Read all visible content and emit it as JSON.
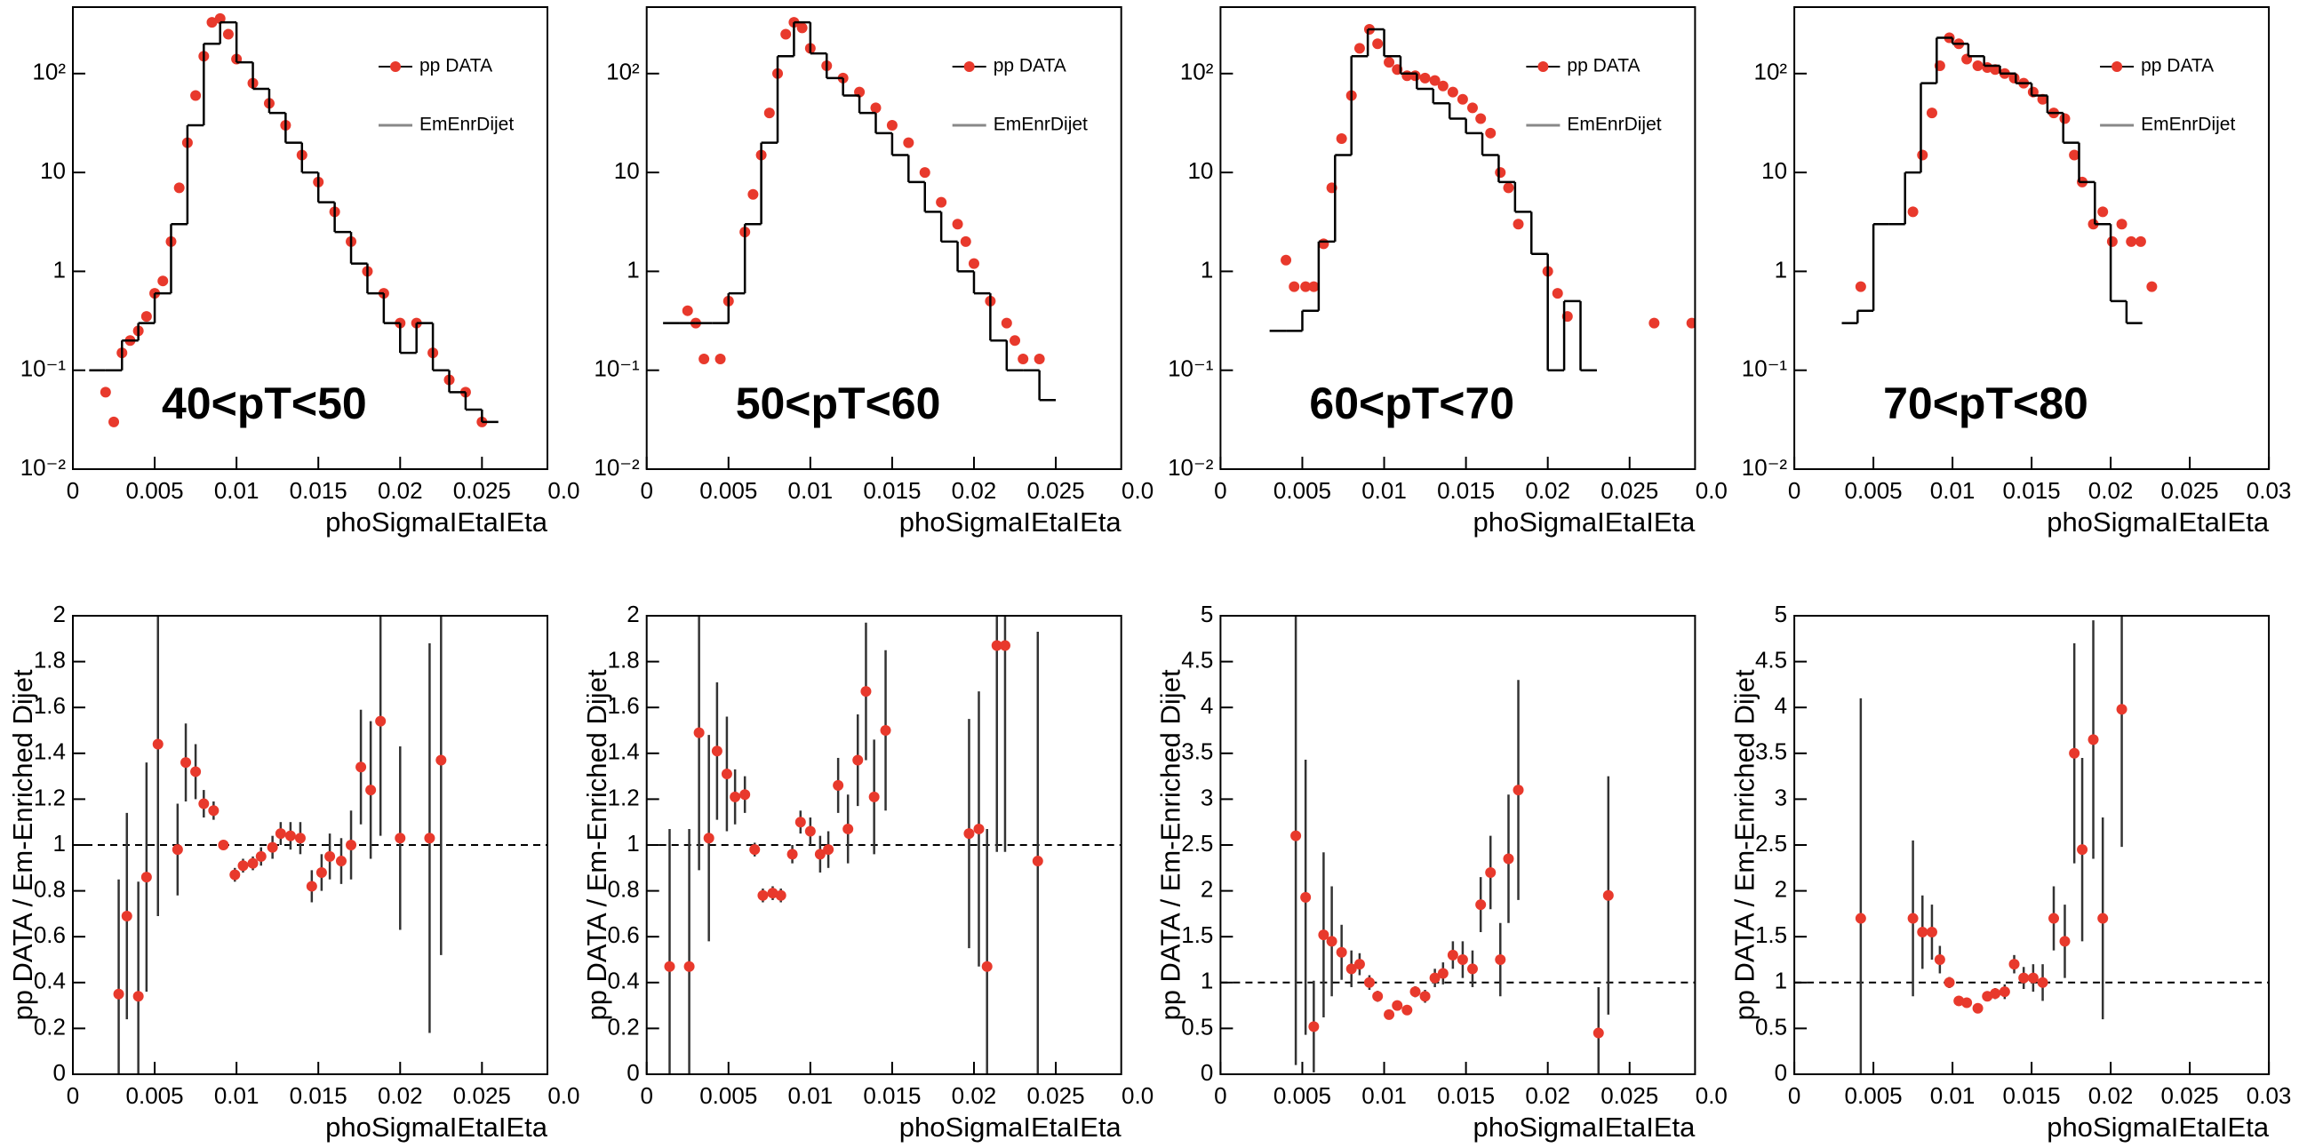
{
  "chart_data": [
    {
      "type": "step",
      "annotation": "40<pT<50",
      "xlabel": "phoSigmaIEtaIEta",
      "legend": "upper right",
      "y_log": true,
      "xlim": [
        0,
        0.029
      ],
      "xticks": [
        0,
        0.005,
        0.01,
        0.015,
        0.02,
        0.025,
        {
          "value": 0.03,
          "label": "0.0"
        }
      ],
      "ylim": [
        0.01,
        470
      ],
      "yticks": [
        {
          "value": 0.01,
          "label": "10⁻²"
        },
        {
          "value": 0.1,
          "label": "10⁻¹"
        },
        1,
        10,
        {
          "value": 100,
          "label": "10²"
        }
      ],
      "series": [
        {
          "name": "pp DATA",
          "color": "#e8392c",
          "x": [
            0.002,
            0.0025,
            0.003,
            0.0035,
            0.004,
            0.0045,
            0.005,
            0.0055,
            0.006,
            0.0065,
            0.007,
            0.0075,
            0.008,
            0.0085,
            0.009,
            0.0095,
            0.01,
            0.011,
            0.012,
            0.013,
            0.014,
            0.015,
            0.016,
            0.017,
            0.018,
            0.019,
            0.02,
            0.021,
            0.022,
            0.023,
            0.024,
            0.025
          ],
          "values": [
            0.06,
            0.03,
            0.15,
            0.2,
            0.25,
            0.35,
            0.6,
            0.8,
            2,
            7,
            20,
            60,
            150,
            330,
            360,
            250,
            140,
            80,
            50,
            30,
            15,
            8,
            4,
            2,
            1,
            0.6,
            0.3,
            0.3,
            0.15,
            0.08,
            0.06,
            0.03
          ]
        },
        {
          "name": "EmEnrDijet",
          "color": "#000000",
          "bins": [
            0.001,
            0.002,
            0.003,
            0.004,
            0.005,
            0.006,
            0.007,
            0.008,
            0.009,
            0.01,
            0.011,
            0.012,
            0.013,
            0.014,
            0.015,
            0.016,
            0.017,
            0.018,
            0.019,
            0.02,
            0.021,
            0.022,
            0.023,
            0.024,
            0.025,
            0.026
          ],
          "values": [
            0.1,
            0.1,
            0.2,
            0.3,
            0.6,
            3,
            30,
            200,
            330,
            130,
            70,
            40,
            20,
            10,
            5,
            2.5,
            1.2,
            0.6,
            0.3,
            0.15,
            0.3,
            0.1,
            0.06,
            0.04,
            0.03
          ]
        }
      ]
    },
    {
      "type": "step",
      "annotation": "50<pT<60",
      "xlabel": "phoSigmaIEtaIEta",
      "legend": "upper right",
      "y_log": true,
      "xlim": [
        0,
        0.029
      ],
      "xticks": [
        0,
        0.005,
        0.01,
        0.015,
        0.02,
        0.025,
        {
          "value": 0.03,
          "label": "0.0"
        }
      ],
      "ylim": [
        0.01,
        470
      ],
      "yticks": [
        {
          "value": 0.01,
          "label": "10⁻²"
        },
        {
          "value": 0.1,
          "label": "10⁻¹"
        },
        1,
        10,
        {
          "value": 100,
          "label": "10²"
        }
      ],
      "series": [
        {
          "name": "pp DATA",
          "color": "#e8392c",
          "x": [
            0.0025,
            0.003,
            0.0035,
            0.0045,
            0.005,
            0.006,
            0.0065,
            0.007,
            0.0075,
            0.008,
            0.0085,
            0.009,
            0.0095,
            0.01,
            0.011,
            0.012,
            0.013,
            0.014,
            0.015,
            0.016,
            0.017,
            0.018,
            0.019,
            0.0195,
            0.02,
            0.021,
            0.022,
            0.0225,
            0.023,
            0.024
          ],
          "values": [
            0.4,
            0.3,
            0.13,
            0.13,
            0.5,
            2.5,
            6,
            15,
            40,
            100,
            250,
            330,
            290,
            180,
            120,
            90,
            65,
            45,
            30,
            20,
            10,
            5,
            3,
            2,
            1.2,
            0.5,
            0.3,
            0.2,
            0.13,
            0.13
          ]
        },
        {
          "name": "EmEnrDijet",
          "color": "#000000",
          "bins": [
            0.001,
            0.002,
            0.003,
            0.004,
            0.005,
            0.006,
            0.007,
            0.008,
            0.009,
            0.01,
            0.011,
            0.012,
            0.013,
            0.014,
            0.015,
            0.016,
            0.017,
            0.018,
            0.019,
            0.02,
            0.021,
            0.022,
            0.023,
            0.024,
            0.025
          ],
          "values": [
            0.3,
            0.3,
            0.3,
            0.3,
            0.6,
            3,
            20,
            150,
            330,
            160,
            90,
            60,
            40,
            25,
            15,
            8,
            4,
            2,
            1,
            0.6,
            0.2,
            0.1,
            0.1,
            0.05
          ]
        }
      ]
    },
    {
      "type": "step",
      "annotation": "60<pT<70",
      "xlabel": "phoSigmaIEtaIEta",
      "legend": "upper right",
      "y_log": true,
      "xlim": [
        0,
        0.029
      ],
      "xticks": [
        0,
        0.005,
        0.01,
        0.015,
        0.02,
        0.025,
        {
          "value": 0.03,
          "label": "0.0"
        }
      ],
      "ylim": [
        0.01,
        470
      ],
      "yticks": [
        {
          "value": 0.01,
          "label": "10⁻²"
        },
        {
          "value": 0.1,
          "label": "10⁻¹"
        },
        1,
        10,
        {
          "value": 100,
          "label": "10²"
        }
      ],
      "series": [
        {
          "name": "pp DATA",
          "color": "#e8392c",
          "x": [
            0.004,
            0.0045,
            0.0052,
            0.0057,
            0.0063,
            0.0068,
            0.0074,
            0.008,
            0.0085,
            0.0091,
            0.0096,
            0.0103,
            0.0108,
            0.0114,
            0.0119,
            0.0125,
            0.0131,
            0.0136,
            0.0142,
            0.0148,
            0.0154,
            0.0159,
            0.0165,
            0.0171,
            0.0176,
            0.0182,
            0.02,
            0.0206,
            0.0212,
            0.0265,
            0.0288
          ],
          "values": [
            1.3,
            0.7,
            0.7,
            0.7,
            1.9,
            7,
            22,
            60,
            180,
            280,
            200,
            130,
            110,
            95,
            95,
            90,
            85,
            75,
            65,
            55,
            45,
            35,
            25,
            10,
            7,
            3,
            1,
            0.6,
            0.35,
            0.3,
            0.3
          ]
        },
        {
          "name": "EmEnrDijet",
          "color": "#000000",
          "bins": [
            0.003,
            0.004,
            0.005,
            0.006,
            0.007,
            0.008,
            0.009,
            0.01,
            0.011,
            0.012,
            0.013,
            0.014,
            0.015,
            0.016,
            0.017,
            0.018,
            0.019,
            0.02,
            0.021,
            0.022,
            0.023
          ],
          "values": [
            0.25,
            0.25,
            0.4,
            2,
            15,
            150,
            280,
            150,
            100,
            70,
            50,
            35,
            25,
            15,
            8,
            4,
            1.5,
            0.1,
            0.5,
            0.1
          ]
        }
      ]
    },
    {
      "type": "step",
      "annotation": "70<pT<80",
      "xlabel": "phoSigmaIEtaIEta",
      "legend": "upper right",
      "y_log": true,
      "xlim": [
        0,
        0.03
      ],
      "xticks": [
        0,
        0.005,
        0.01,
        0.015,
        0.02,
        0.025,
        0.03
      ],
      "ylim": [
        0.01,
        470
      ],
      "yticks": [
        {
          "value": 0.01,
          "label": "10⁻²"
        },
        {
          "value": 0.1,
          "label": "10⁻¹"
        },
        1,
        10,
        {
          "value": 100,
          "label": "10²"
        }
      ],
      "series": [
        {
          "name": "pp DATA",
          "color": "#e8392c",
          "x": [
            0.0042,
            0.0075,
            0.0081,
            0.0087,
            0.0092,
            0.0098,
            0.0104,
            0.0109,
            0.0116,
            0.0122,
            0.0127,
            0.0133,
            0.0139,
            0.0145,
            0.0151,
            0.0157,
            0.0164,
            0.0171,
            0.0177,
            0.0182,
            0.0189,
            0.0195,
            0.0201,
            0.0207,
            0.0213,
            0.0219,
            0.0226
          ],
          "values": [
            0.7,
            4,
            15,
            40,
            120,
            230,
            200,
            140,
            120,
            115,
            110,
            100,
            90,
            80,
            65,
            55,
            40,
            35,
            15,
            8,
            3,
            4,
            2,
            3,
            2,
            2,
            0.7
          ]
        },
        {
          "name": "EmEnrDijet",
          "color": "#000000",
          "bins": [
            0.003,
            0.004,
            0.005,
            0.006,
            0.007,
            0.008,
            0.009,
            0.01,
            0.011,
            0.012,
            0.013,
            0.014,
            0.015,
            0.016,
            0.017,
            0.018,
            0.019,
            0.02,
            0.021,
            0.022
          ],
          "values": [
            0.3,
            0.4,
            3,
            3,
            10,
            80,
            230,
            200,
            150,
            120,
            100,
            80,
            60,
            40,
            20,
            8,
            3,
            0.5,
            0.3
          ]
        }
      ]
    },
    {
      "type": "scatter",
      "xlabel": "phoSigmaIEtaIEta",
      "ylabel": "pp DATA / Em-Enriched Dijet",
      "color": "#e8392c",
      "reference_line": 1,
      "xlim": [
        0,
        0.029
      ],
      "xticks": [
        0,
        0.005,
        0.01,
        0.015,
        0.02,
        0.025,
        {
          "value": 0.03,
          "label": "0.0"
        }
      ],
      "ylim": [
        0,
        2
      ],
      "yticks": [
        0,
        0.2,
        0.4,
        0.6,
        0.8,
        1,
        1.2,
        1.4,
        1.6,
        1.8,
        2
      ],
      "x": [
        0.0028,
        0.0033,
        0.004,
        0.0045,
        0.0052,
        0.0064,
        0.0069,
        0.0075,
        0.008,
        0.0086,
        0.0092,
        0.0099,
        0.0104,
        0.011,
        0.0115,
        0.0122,
        0.0127,
        0.0133,
        0.0139,
        0.0146,
        0.0152,
        0.0157,
        0.0164,
        0.017,
        0.0176,
        0.0182,
        0.0188,
        0.02,
        0.0218,
        0.0225
      ],
      "values": [
        0.35,
        0.69,
        0.34,
        0.86,
        1.44,
        0.98,
        1.36,
        1.32,
        1.18,
        1.15,
        1.0,
        0.87,
        0.91,
        0.92,
        0.95,
        0.99,
        1.05,
        1.04,
        1.03,
        0.82,
        0.88,
        0.95,
        0.93,
        1.0,
        1.34,
        1.24,
        1.54,
        1.03,
        1.03,
        1.37
      ],
      "errors": [
        0.5,
        0.45,
        0.5,
        0.5,
        0.75,
        0.2,
        0.17,
        0.12,
        0.06,
        0.04,
        0.02,
        0.03,
        0.03,
        0.03,
        0.04,
        0.05,
        0.05,
        0.06,
        0.07,
        0.07,
        0.08,
        0.1,
        0.1,
        0.15,
        0.25,
        0.3,
        0.5,
        0.4,
        0.85,
        0.85
      ]
    },
    {
      "type": "scatter",
      "xlabel": "phoSigmaIEtaIEta",
      "ylabel": "pp DATA / Em-Enriched Dijet",
      "color": "#e8392c",
      "reference_line": 1,
      "xlim": [
        0,
        0.029
      ],
      "xticks": [
        0,
        0.005,
        0.01,
        0.015,
        0.02,
        0.025,
        {
          "value": 0.03,
          "label": "0.0"
        }
      ],
      "ylim": [
        0,
        2
      ],
      "yticks": [
        0,
        0.2,
        0.4,
        0.6,
        0.8,
        1,
        1.2,
        1.4,
        1.6,
        1.8,
        2
      ],
      "x": [
        0.0014,
        0.0026,
        0.0032,
        0.0038,
        0.0043,
        0.0049,
        0.0054,
        0.006,
        0.0066,
        0.0071,
        0.0077,
        0.0082,
        0.0089,
        0.0094,
        0.01,
        0.0106,
        0.0111,
        0.0117,
        0.0123,
        0.0129,
        0.0134,
        0.0139,
        0.0146,
        0.0197,
        0.0203,
        0.0208,
        0.0214,
        0.0219,
        0.0239
      ],
      "values": [
        0.47,
        0.47,
        1.49,
        1.03,
        1.41,
        1.31,
        1.21,
        1.22,
        0.98,
        0.78,
        0.79,
        0.78,
        0.96,
        1.1,
        1.06,
        0.96,
        0.98,
        1.26,
        1.07,
        1.37,
        1.67,
        1.21,
        1.5,
        1.05,
        1.07,
        0.47,
        1.87,
        1.87,
        0.93
      ],
      "errors": [
        0.6,
        0.6,
        0.6,
        0.45,
        0.3,
        0.25,
        0.12,
        0.08,
        0.03,
        0.03,
        0.03,
        0.03,
        0.04,
        0.05,
        0.06,
        0.08,
        0.08,
        0.12,
        0.15,
        0.2,
        0.3,
        0.25,
        0.35,
        0.5,
        0.6,
        0.6,
        0.9,
        0.9,
        1.0
      ]
    },
    {
      "type": "scatter",
      "xlabel": "phoSigmaIEtaIEta",
      "ylabel": "pp DATA / Em-Enriched Dijet",
      "color": "#e8392c",
      "reference_line": 1,
      "xlim": [
        0,
        0.029
      ],
      "xticks": [
        0,
        0.005,
        0.01,
        0.015,
        0.02,
        0.025,
        {
          "value": 0.03,
          "label": "0.0"
        }
      ],
      "ylim": [
        0,
        5
      ],
      "yticks": [
        0,
        0.5,
        1,
        1.5,
        2,
        2.5,
        3,
        3.5,
        4,
        4.5,
        5
      ],
      "x": [
        0.0046,
        0.0052,
        0.0057,
        0.0063,
        0.0068,
        0.0074,
        0.008,
        0.0085,
        0.0091,
        0.0096,
        0.0103,
        0.0108,
        0.0114,
        0.0119,
        0.0125,
        0.0131,
        0.0136,
        0.0142,
        0.0148,
        0.0154,
        0.0159,
        0.0165,
        0.0171,
        0.0176,
        0.0182,
        0.0231,
        0.0237
      ],
      "values": [
        2.6,
        1.93,
        0.52,
        1.52,
        1.45,
        1.33,
        1.15,
        1.2,
        1.0,
        0.85,
        0.65,
        0.75,
        0.7,
        0.9,
        0.85,
        1.05,
        1.1,
        1.3,
        1.25,
        1.15,
        1.85,
        2.2,
        1.25,
        2.35,
        3.1,
        0.45,
        1.95
      ],
      "errors": [
        2.5,
        1.5,
        0.5,
        0.9,
        0.6,
        0.3,
        0.2,
        0.12,
        0.08,
        0.06,
        0.05,
        0.05,
        0.05,
        0.06,
        0.07,
        0.1,
        0.12,
        0.15,
        0.2,
        0.2,
        0.3,
        0.4,
        0.4,
        0.7,
        1.2,
        0.5,
        1.3
      ]
    },
    {
      "type": "scatter",
      "xlabel": "phoSigmaIEtaIEta",
      "ylabel": "pp DATA / Em-Enriched Dijet",
      "color": "#e8392c",
      "reference_line": 1,
      "xlim": [
        0,
        0.03
      ],
      "xticks": [
        0,
        0.005,
        0.01,
        0.015,
        0.02,
        0.025,
        0.03
      ],
      "ylim": [
        0,
        5
      ],
      "yticks": [
        0,
        0.5,
        1,
        1.5,
        2,
        2.5,
        3,
        3.5,
        4,
        4.5,
        5
      ],
      "x": [
        0.0042,
        0.0075,
        0.0081,
        0.0087,
        0.0092,
        0.0098,
        0.0104,
        0.0109,
        0.0116,
        0.0122,
        0.0127,
        0.0133,
        0.0139,
        0.0145,
        0.0151,
        0.0157,
        0.0164,
        0.0171,
        0.0177,
        0.0182,
        0.0189,
        0.0195,
        0.0207
      ],
      "values": [
        1.7,
        1.7,
        1.55,
        1.55,
        1.25,
        1.0,
        0.8,
        0.78,
        0.72,
        0.85,
        0.88,
        0.9,
        1.2,
        1.05,
        1.05,
        1.0,
        1.7,
        1.45,
        3.5,
        2.45,
        3.65,
        1.7,
        3.98
      ],
      "errors": [
        2.4,
        0.85,
        0.4,
        0.3,
        0.15,
        0.06,
        0.05,
        0.04,
        0.05,
        0.05,
        0.06,
        0.08,
        0.1,
        0.12,
        0.15,
        0.2,
        0.35,
        0.4,
        1.2,
        1.0,
        1.3,
        1.1,
        1.5
      ]
    }
  ]
}
